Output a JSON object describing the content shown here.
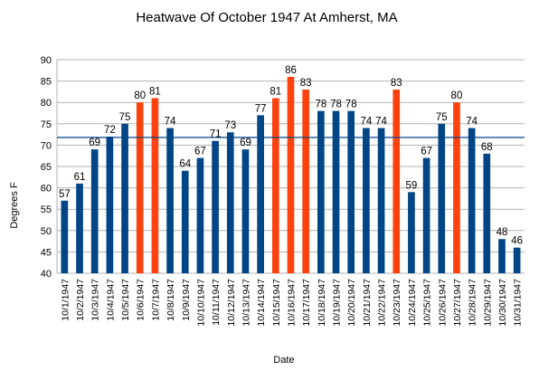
{
  "chart_data": {
    "type": "bar",
    "title": "Heatwave Of October 1947 At Amherst, MA",
    "xlabel": "Date",
    "ylabel": "Degrees F",
    "ylim": [
      40,
      90
    ],
    "yticks": [
      40,
      45,
      50,
      55,
      60,
      65,
      70,
      75,
      80,
      85,
      90
    ],
    "grid": true,
    "legend": "none",
    "categories": [
      "10/1/1947",
      "10/2/1947",
      "10/3/1947",
      "10/4/1947",
      "10/5/1947",
      "10/6/1947",
      "10/7/1947",
      "10/8/1947",
      "10/9/1947",
      "10/10/1947",
      "10/11/1947",
      "10/12/1947",
      "10/13/1947",
      "10/14/1947",
      "10/15/1947",
      "10/16/1947",
      "10/17/1947",
      "10/18/1947",
      "10/19/1947",
      "10/20/1947",
      "10/21/1947",
      "10/22/1947",
      "10/23/1947",
      "10/24/1947",
      "10/25/1947",
      "10/26/1947",
      "10/27/1947",
      "10/28/1947",
      "10/29/1947",
      "10/30/1947",
      "10/31/1947"
    ],
    "values": [
      57,
      61,
      69,
      72,
      75,
      80,
      81,
      74,
      64,
      67,
      71,
      73,
      69,
      77,
      81,
      86,
      83,
      78,
      78,
      78,
      74,
      74,
      83,
      59,
      67,
      75,
      80,
      74,
      68,
      48,
      46
    ],
    "highlight": [
      false,
      false,
      false,
      false,
      false,
      true,
      true,
      false,
      false,
      false,
      false,
      false,
      false,
      false,
      true,
      true,
      true,
      false,
      false,
      false,
      false,
      false,
      true,
      false,
      false,
      false,
      true,
      false,
      false,
      false,
      false
    ],
    "reference_line": 71.8,
    "colors": {
      "bar": "#004586",
      "highlight": "#ff420e",
      "reference_line": "#004586",
      "grid": "#b3b3b3"
    }
  }
}
